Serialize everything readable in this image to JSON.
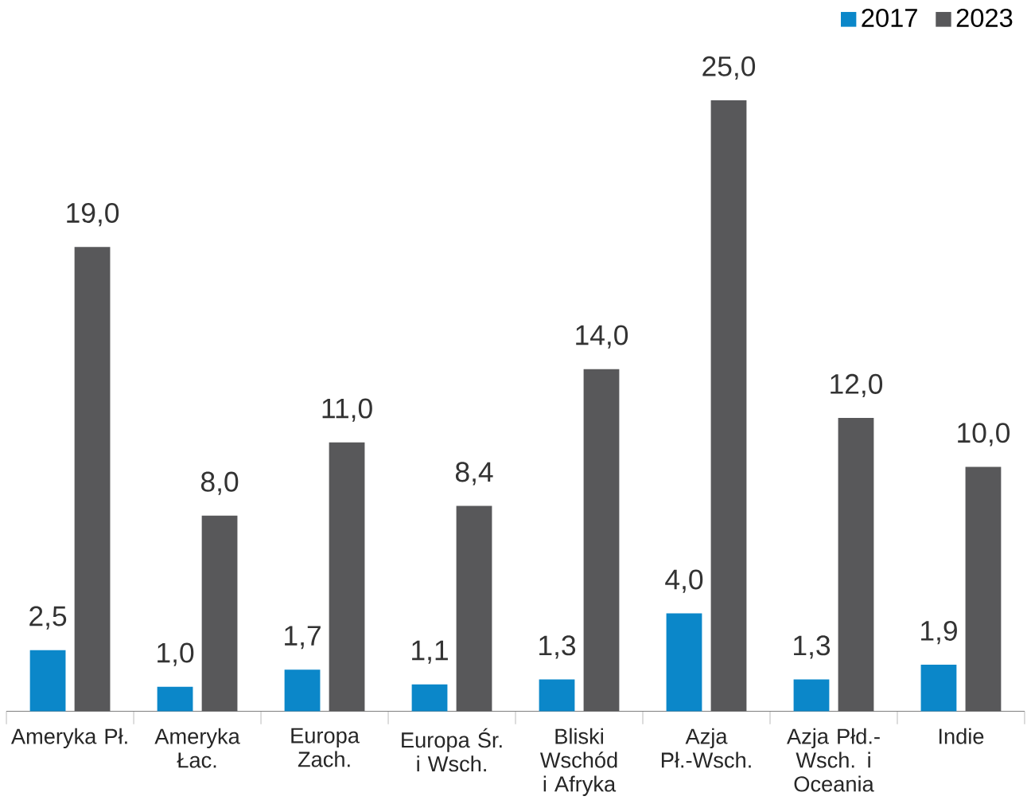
{
  "chart_data": {
    "type": "bar",
    "categories": [
      "Ameryka Pł.",
      "Ameryka Łac.",
      "Europa Zach.",
      "Europa Śr. i Wsch.",
      "Bliski Wschód i Afryka",
      "Azja Pł.-Wsch.",
      "Azja Płd.-Wsch. i Oceania",
      "Indie"
    ],
    "series": [
      {
        "name": "2017",
        "color": "#0b87c9",
        "values": [
          2.5,
          1.0,
          1.7,
          1.1,
          1.3,
          4.0,
          1.3,
          1.9
        ],
        "value_labels": [
          "2,5",
          "1,0",
          "1,7",
          "1,1",
          "1,3",
          "4,0",
          "1,3",
          "1,9"
        ]
      },
      {
        "name": "2023",
        "color": "#58585a",
        "values": [
          19.0,
          8.0,
          11.0,
          8.4,
          14.0,
          25.0,
          12.0,
          10.0
        ],
        "value_labels": [
          "19,0",
          "8,0",
          "11,0",
          "8,4",
          "14,0",
          "25,0",
          "12,0",
          "10,0"
        ]
      }
    ],
    "legend": "top right"
  }
}
